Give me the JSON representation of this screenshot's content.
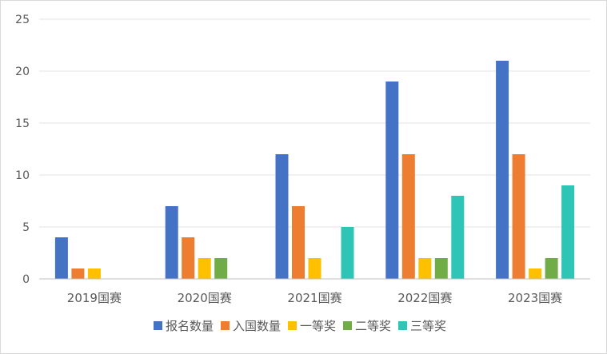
{
  "chart_data": {
    "type": "bar",
    "categories": [
      "2019国赛",
      "2020国赛",
      "2021国赛",
      "2022国赛",
      "2023国赛"
    ],
    "series": [
      {
        "name": "报名数量",
        "values": [
          4,
          7,
          12,
          19,
          21
        ],
        "color": "#4472C4"
      },
      {
        "name": "入国数量",
        "values": [
          1,
          4,
          7,
          12,
          12
        ],
        "color": "#ED7D31"
      },
      {
        "name": "一等奖",
        "values": [
          1,
          2,
          2,
          2,
          1
        ],
        "color": "#FFC000"
      },
      {
        "name": "二等奖",
        "values": [
          0,
          2,
          0,
          2,
          2
        ],
        "color": "#70AD47"
      },
      {
        "name": "三等奖",
        "values": [
          0,
          0,
          5,
          8,
          9
        ],
        "color": "#2EC4B6"
      }
    ],
    "yticks": [
      "0",
      "5",
      "10",
      "15",
      "20",
      "25"
    ],
    "ylim": [
      0,
      25
    ],
    "grid": true,
    "legend_position": "bottom",
    "title": "",
    "xlabel": "",
    "ylabel": ""
  }
}
